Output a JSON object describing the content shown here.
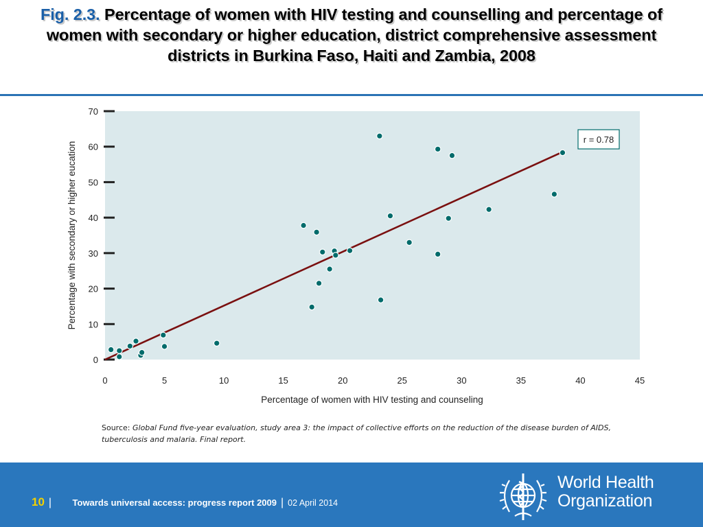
{
  "header": {
    "fig_label": "Fig. 2.3.",
    "title": "Percentage of women with HIV testing and counselling and percentage of women with secondary or higher education, district comprehensive assessment districts in Burkina Faso, Haiti and Zambia, 2008"
  },
  "chart_data": {
    "type": "scatter",
    "xlabel": "Percentage of women with HIV testing and counseling",
    "ylabel": "Percentage with secondary or higher eucation",
    "xlim": [
      0,
      45
    ],
    "ylim": [
      0,
      70
    ],
    "x_ticks": [
      0,
      5,
      10,
      15,
      20,
      25,
      30,
      35,
      40,
      45
    ],
    "y_ticks": [
      0,
      10,
      20,
      30,
      40,
      50,
      60,
      70
    ],
    "annotation": "r = 0.78",
    "grid": false,
    "points": [
      {
        "x": 0.5,
        "y": 2.8
      },
      {
        "x": 1.2,
        "y": 0.8
      },
      {
        "x": 1.2,
        "y": 2.5
      },
      {
        "x": 2.1,
        "y": 3.8
      },
      {
        "x": 2.6,
        "y": 5.2
      },
      {
        "x": 3.0,
        "y": 1.2
      },
      {
        "x": 3.1,
        "y": 2.0
      },
      {
        "x": 4.9,
        "y": 6.9
      },
      {
        "x": 5.0,
        "y": 3.7
      },
      {
        "x": 9.4,
        "y": 4.6
      },
      {
        "x": 16.7,
        "y": 37.8
      },
      {
        "x": 17.4,
        "y": 14.8
      },
      {
        "x": 17.8,
        "y": 35.9
      },
      {
        "x": 18.0,
        "y": 21.5
      },
      {
        "x": 18.3,
        "y": 30.3
      },
      {
        "x": 18.9,
        "y": 25.5
      },
      {
        "x": 19.3,
        "y": 30.6
      },
      {
        "x": 19.4,
        "y": 29.4
      },
      {
        "x": 20.6,
        "y": 30.7
      },
      {
        "x": 23.1,
        "y": 63.0
      },
      {
        "x": 23.2,
        "y": 16.8
      },
      {
        "x": 24.0,
        "y": 40.5
      },
      {
        "x": 25.6,
        "y": 33.0
      },
      {
        "x": 28.0,
        "y": 59.3
      },
      {
        "x": 28.0,
        "y": 29.7
      },
      {
        "x": 28.9,
        "y": 39.8
      },
      {
        "x": 29.2,
        "y": 57.5
      },
      {
        "x": 32.3,
        "y": 42.3
      },
      {
        "x": 37.8,
        "y": 46.6
      },
      {
        "x": 38.5,
        "y": 58.3
      }
    ],
    "trendline": {
      "x1": 0,
      "y1": 0,
      "x2": 38.5,
      "y2": 58.5
    },
    "colors": {
      "background": "#dbe9ec",
      "point": "#006b6b",
      "trendline": "#7a1010",
      "axis": "#222222"
    }
  },
  "source": {
    "prefix": "Source:",
    "text": "Global Fund five-year evaluation, study area 3: the impact of collective efforts on the reduction of the disease burden of AIDS, tuberculosis and malaria. Final report."
  },
  "footer": {
    "page_number": "10",
    "report_title": "Towards universal access: progress report 2009",
    "date": "02 April 2014",
    "org_line1": "World Health",
    "org_line2": "Organization",
    "colors": {
      "band": "#2a77bd",
      "page_number": "#f3d200"
    }
  }
}
